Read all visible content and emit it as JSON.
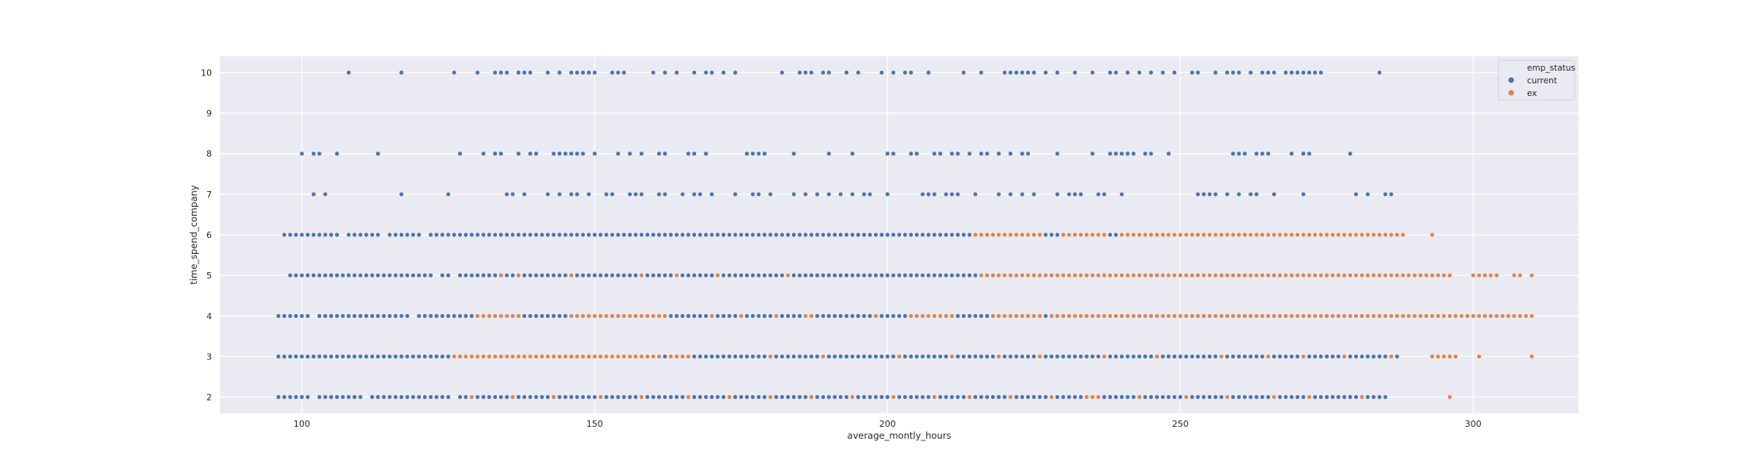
{
  "chart_data": {
    "type": "scatter",
    "title": "",
    "xlabel": "average_montly_hours",
    "ylabel": "time_spend_company",
    "xlim": [
      86,
      318
    ],
    "ylim": [
      1.6,
      10.4
    ],
    "xticks": [
      100,
      150,
      200,
      250,
      300
    ],
    "yticks": [
      2,
      3,
      4,
      5,
      6,
      7,
      8,
      9,
      10
    ],
    "grid": true,
    "background": "#eaeaf2",
    "legend": {
      "title": "emp_status",
      "placement": "top-right",
      "entries": [
        {
          "label": "current",
          "color": "#4c72b0"
        },
        {
          "label": "ex",
          "color": "#dd8452"
        }
      ]
    },
    "point_step": 1,
    "note_on_points": "Each row lists runs of integer x values (hours) present at a given y (years). Points drawn at every integer within each [start, end] run.",
    "series": [
      {
        "name": "current",
        "color": "#4c72b0",
        "rows": [
          {
            "y": 10,
            "x": [
              108,
              117,
              126,
              130,
              133,
              134,
              135,
              137,
              138,
              139,
              142,
              144,
              146,
              147,
              148,
              149,
              150,
              153,
              154,
              155,
              160,
              162,
              164,
              167,
              169,
              170,
              172,
              174,
              182,
              185,
              186,
              187,
              189,
              190,
              193,
              195,
              199,
              201,
              203,
              204,
              207,
              213,
              216,
              220,
              221,
              222,
              223,
              224,
              225,
              227,
              229,
              232,
              235,
              238,
              239,
              241,
              243,
              245,
              247,
              249,
              252,
              253,
              256,
              258,
              259,
              260,
              262,
              264,
              265,
              266,
              268,
              269,
              270,
              271,
              272,
              273,
              274,
              284
            ]
          },
          {
            "y": 8,
            "x": [
              100,
              102,
              103,
              106,
              113,
              127,
              131,
              133,
              134,
              137,
              139,
              140,
              143,
              144,
              145,
              146,
              147,
              148,
              150,
              154,
              156,
              158,
              161,
              162,
              166,
              167,
              169,
              176,
              177,
              178,
              179,
              184,
              190,
              194,
              200,
              201,
              204,
              205,
              208,
              209,
              211,
              212,
              214,
              216,
              217,
              219,
              221,
              223,
              224,
              229,
              235,
              238,
              239,
              240,
              241,
              242,
              244,
              245,
              248,
              259,
              260,
              261,
              263,
              264,
              265,
              269,
              271,
              272,
              279
            ]
          },
          {
            "y": 7,
            "x": [
              102,
              104,
              117,
              125,
              135,
              136,
              138,
              142,
              144,
              146,
              147,
              149,
              152,
              153,
              156,
              157,
              158,
              161,
              162,
              165,
              167,
              168,
              170,
              174,
              177,
              178,
              180,
              184,
              186,
              188,
              190,
              192,
              194,
              196,
              197,
              200,
              206,
              207,
              208,
              210,
              211,
              212,
              215,
              219,
              221,
              223,
              225,
              229,
              231,
              232,
              233,
              236,
              237,
              240,
              253,
              254,
              255,
              256,
              258,
              260,
              262,
              263,
              266,
              271,
              280,
              282,
              285,
              286
            ]
          },
          {
            "y": 6,
            "x": [
              [
                97,
                106
              ],
              [
                108,
                113
              ],
              [
                115,
                120
              ],
              [
                122,
                287
              ]
            ]
          },
          {
            "y": 5,
            "x": [
              [
                98,
                122
              ],
              [
                124,
                125
              ],
              [
                127,
                215
              ],
              [
                216,
                287
              ],
              [
                289,
                296
              ]
            ]
          },
          {
            "y": 4,
            "x": [
              [
                96,
                101
              ],
              [
                103,
                118
              ],
              [
                120,
                125
              ],
              [
                126,
                292
              ]
            ]
          },
          {
            "y": 3,
            "x": [
              [
                96,
                123
              ],
              [
                124,
                287
              ]
            ]
          },
          {
            "y": 2,
            "x": [
              [
                96,
                101
              ],
              [
                103,
                110
              ],
              [
                112,
                118
              ],
              [
                119,
                125
              ],
              [
                127,
                285
              ]
            ]
          }
        ]
      },
      {
        "name": "ex",
        "color": "#dd8452",
        "rows": [
          {
            "y": 6,
            "x": [
              [
                215,
                226
              ],
              [
                230,
                237
              ],
              [
                240,
                288
              ],
              293
            ]
          },
          {
            "y": 5,
            "x": [
              134,
              137,
              146,
              158,
              164,
              171,
              183,
              [
                216,
                296
              ],
              [
                300,
                304
              ],
              307,
              308,
              310
            ]
          },
          {
            "y": 4,
            "x": [
              [
                130,
                137
              ],
              [
                146,
                162
              ],
              170,
              175,
              181,
              [
                186,
                187
              ],
              198,
              [
                204,
                211
              ],
              [
                218,
                226
              ],
              [
                228,
                310
              ]
            ]
          },
          {
            "y": 3,
            "x": [
              [
                126,
                161
              ],
              [
                163,
                166
              ],
              180,
              189,
              202,
              211,
              219,
              226,
              237,
              246,
              257,
              265,
              271,
              278,
              286,
              [
                293,
                297
              ],
              301,
              310
            ]
          },
          {
            "y": 2,
            "x": [
              129,
              136,
              143,
              151,
              158,
              166,
              173,
              180,
              187,
              194,
              201,
              208,
              214,
              221,
              228,
              [
                234,
                236
              ],
              243,
              251,
              258,
              266,
              272,
              281,
              296
            ]
          }
        ]
      }
    ]
  }
}
